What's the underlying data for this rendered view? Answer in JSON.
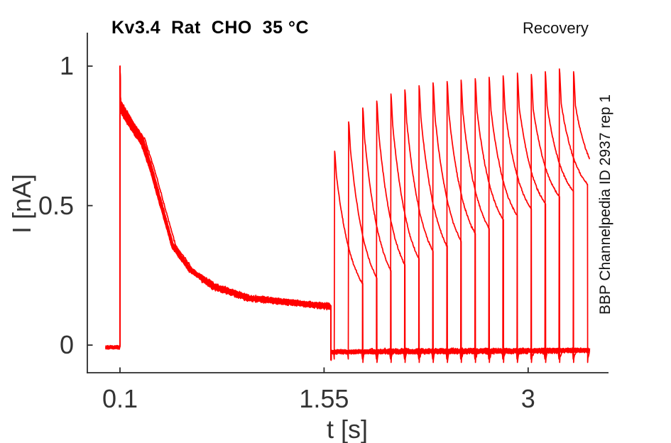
{
  "figure": {
    "title": "Kv3.4  Rat  CHO  35 °C",
    "corner_annotation": "Recovery",
    "right_side_label": "BBP Channelpedia ID 2937 rep 1"
  },
  "chart_data": {
    "type": "line",
    "title": "Kv3.4  Rat  CHO  35 °C",
    "annotation": "Recovery",
    "side_label": "BBP Channelpedia ID 2937 rep 1",
    "xlabel": "t [s]",
    "ylabel": "I [nA]",
    "x_ticks": [
      0.1,
      1.55,
      3
    ],
    "x_tick_labels": [
      "0.1",
      "1.55",
      "3"
    ],
    "y_ticks": [
      0,
      0.5,
      1
    ],
    "y_tick_labels": [
      "0",
      "0.5",
      "1"
    ],
    "xlim": [
      -0.132,
      3.571
    ],
    "ylim": [
      -0.099,
      1.12
    ],
    "line_color": "#ff0000",
    "axis_color": "#2a2a2a",
    "grid": false,
    "legend": null,
    "n_sweeps": 18,
    "t_range_of_data": [
      0.0,
      3.437
    ],
    "baseline_current": -0.02,
    "conditioning_pulse": {
      "t_start": 0.1,
      "t_end": 1.598,
      "capacitive_peak": 1.0,
      "decay_points": [
        [
          0.105,
          0.85
        ],
        [
          0.17,
          0.795
        ],
        [
          0.256,
          0.73
        ],
        [
          0.32,
          0.63
        ],
        [
          0.392,
          0.5
        ],
        [
          0.473,
          0.355
        ],
        [
          0.594,
          0.27
        ],
        [
          0.76,
          0.21
        ],
        [
          1.01,
          0.168
        ],
        [
          1.2,
          0.158
        ],
        [
          1.35,
          0.15
        ],
        [
          1.5,
          0.142
        ],
        [
          1.598,
          0.138
        ]
      ]
    },
    "recovery_pulses": {
      "count": 18,
      "first_onset": 1.6255,
      "interval": 0.0998,
      "duration": 0.2,
      "peaks": [
        0.695,
        0.8,
        0.85,
        0.875,
        0.9,
        0.915,
        0.93,
        0.94,
        0.945,
        0.95,
        0.955,
        0.96,
        0.965,
        0.975,
        0.97,
        0.98,
        0.99,
        0.98
      ],
      "post_peak_fraction": 0.875,
      "tail_end_value_first": 0.22,
      "tail_end_value_last": 0.6
    }
  }
}
